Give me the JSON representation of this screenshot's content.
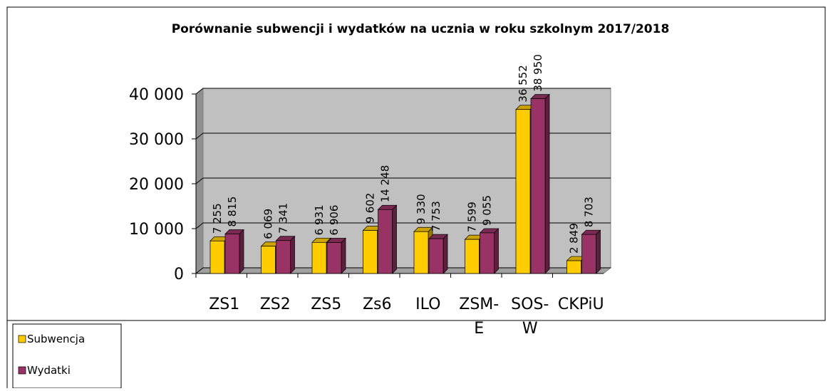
{
  "chart_data": {
    "type": "bar",
    "title": "Porównanie subwencji i wydatków na ucznia w roku szkolnym 2017/2018",
    "categories": [
      "ZS1",
      "ZS2",
      "ZS5",
      "Zs6",
      "ILO",
      "ZSM-E",
      "SOS-W",
      "CKPiU"
    ],
    "series": [
      {
        "name": "Subwencja",
        "color": "#ffcc00",
        "values": [
          7255,
          6069,
          6931,
          9602,
          9330,
          7599,
          36552,
          2849
        ],
        "value_labels": [
          "7 255",
          "6 069",
          "6 931",
          "9 602",
          "9 330",
          "7 599",
          "36 552",
          "2 849"
        ]
      },
      {
        "name": "Wydatki",
        "color": "#993366",
        "values": [
          8815,
          7341,
          6906,
          14248,
          7753,
          9055,
          38950,
          8703
        ],
        "value_labels": [
          "8 815",
          "7 341",
          "6 906",
          "14 248",
          "7 753",
          "9 055",
          "38 950",
          "8 703"
        ]
      }
    ],
    "ylim": [
      0,
      40000
    ],
    "yticks": [
      0,
      {
        "value": 10000,
        "label": "10 000"
      },
      {
        "value": 20000,
        "label": "20 000"
      },
      {
        "value": 30000,
        "label": "30 000"
      },
      {
        "value": 40000,
        "label": "40 000"
      }
    ],
    "grid": true
  }
}
